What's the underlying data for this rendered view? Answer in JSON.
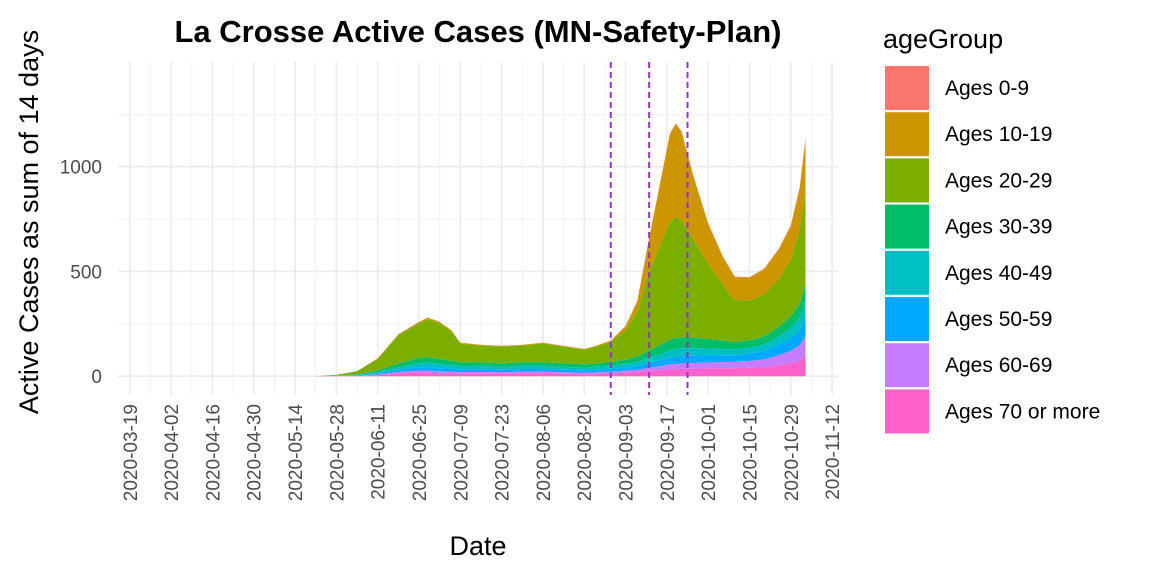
{
  "chart_data": {
    "type": "area",
    "stacked": true,
    "title": "La Crosse Active Cases (MN-Safety-Plan)",
    "xlabel": "Date",
    "ylabel": "Active Cases as sum of 14 days",
    "x_ticks": [
      "2020-03-19",
      "2020-04-02",
      "2020-04-16",
      "2020-04-30",
      "2020-05-14",
      "2020-05-28",
      "2020-06-11",
      "2020-06-25",
      "2020-07-09",
      "2020-07-23",
      "2020-08-06",
      "2020-08-20",
      "2020-09-03",
      "2020-09-17",
      "2020-10-01",
      "2020-10-15",
      "2020-10-29",
      "2020-11-12"
    ],
    "xlim": [
      "2020-03-15",
      "2020-11-14"
    ],
    "y_ticks": [
      0,
      500,
      1000
    ],
    "ylim": [
      -90,
      1500
    ],
    "grid": true,
    "legend_position": "right",
    "legend_title": "ageGroup",
    "vlines": {
      "dates": [
        "2020-08-29",
        "2020-09-11",
        "2020-09-24"
      ],
      "color": "#9932cc",
      "style": "dashed"
    },
    "x": [
      "2020-05-21",
      "2020-05-28",
      "2020-06-04",
      "2020-06-11",
      "2020-06-18",
      "2020-06-25",
      "2020-06-28",
      "2020-07-02",
      "2020-07-06",
      "2020-07-09",
      "2020-07-16",
      "2020-07-23",
      "2020-07-30",
      "2020-08-06",
      "2020-08-13",
      "2020-08-20",
      "2020-08-24",
      "2020-08-29",
      "2020-09-03",
      "2020-09-07",
      "2020-09-11",
      "2020-09-15",
      "2020-09-18",
      "2020-09-20",
      "2020-09-22",
      "2020-09-26",
      "2020-10-01",
      "2020-10-06",
      "2020-10-10",
      "2020-10-15",
      "2020-10-20",
      "2020-10-25",
      "2020-10-29",
      "2020-11-01",
      "2020-11-03"
    ],
    "series": [
      {
        "name": "Ages 0-9",
        "color": "#F8766D",
        "values": [
          0,
          0,
          0,
          1,
          1,
          2,
          2,
          2,
          2,
          1,
          1,
          1,
          1,
          1,
          1,
          1,
          1,
          1,
          2,
          2,
          3,
          4,
          5,
          5,
          5,
          4,
          3,
          3,
          3,
          3,
          4,
          5,
          6,
          8,
          10
        ]
      },
      {
        "name": "Ages 10-19",
        "color": "#CD9600",
        "values": [
          0,
          0,
          1,
          2,
          4,
          6,
          7,
          6,
          4,
          3,
          3,
          3,
          3,
          3,
          3,
          3,
          4,
          6,
          20,
          50,
          160,
          310,
          420,
          440,
          420,
          300,
          190,
          130,
          110,
          110,
          120,
          140,
          160,
          200,
          240
        ]
      },
      {
        "name": "Ages 20-29",
        "color": "#7CAE00",
        "values": [
          0,
          3,
          15,
          55,
          135,
          165,
          180,
          170,
          140,
          90,
          80,
          80,
          80,
          90,
          80,
          70,
          80,
          95,
          140,
          215,
          375,
          480,
          560,
          580,
          560,
          470,
          360,
          270,
          200,
          190,
          200,
          230,
          270,
          350,
          450
        ]
      },
      {
        "name": "Ages 30-39",
        "color": "#00BE67",
        "values": [
          0,
          1,
          2,
          8,
          18,
          25,
          26,
          24,
          20,
          18,
          17,
          16,
          17,
          17,
          16,
          15,
          16,
          18,
          20,
          25,
          35,
          45,
          50,
          52,
          52,
          50,
          45,
          40,
          35,
          35,
          38,
          45,
          55,
          65,
          80
        ]
      },
      {
        "name": "Ages 40-49",
        "color": "#00BFC4",
        "values": [
          0,
          1,
          2,
          6,
          12,
          20,
          22,
          20,
          18,
          16,
          16,
          15,
          15,
          15,
          14,
          13,
          14,
          15,
          17,
          20,
          25,
          30,
          35,
          38,
          38,
          36,
          33,
          30,
          28,
          28,
          32,
          40,
          50,
          60,
          75
        ]
      },
      {
        "name": "Ages 50-59",
        "color": "#00A9FF",
        "values": [
          0,
          1,
          2,
          5,
          10,
          15,
          16,
          15,
          14,
          13,
          13,
          12,
          12,
          13,
          12,
          11,
          12,
          13,
          15,
          18,
          22,
          28,
          32,
          34,
          35,
          35,
          34,
          32,
          32,
          34,
          40,
          50,
          60,
          72,
          90
        ]
      },
      {
        "name": "Ages 60-69",
        "color": "#C77CFF",
        "values": [
          0,
          0,
          1,
          3,
          7,
          10,
          11,
          10,
          9,
          8,
          8,
          8,
          8,
          8,
          8,
          8,
          8,
          9,
          10,
          12,
          16,
          20,
          24,
          25,
          26,
          27,
          28,
          29,
          30,
          33,
          38,
          48,
          60,
          72,
          90
        ]
      },
      {
        "name": "Ages 70 or more",
        "color": "#FF61CC",
        "values": [
          0,
          1,
          1,
          5,
          13,
          17,
          16,
          13,
          13,
          11,
          12,
          10,
          14,
          13,
          11,
          9,
          10,
          13,
          16,
          18,
          24,
          28,
          32,
          33,
          34,
          36,
          37,
          38,
          38,
          40,
          42,
          52,
          60,
          75,
          100
        ]
      }
    ]
  }
}
